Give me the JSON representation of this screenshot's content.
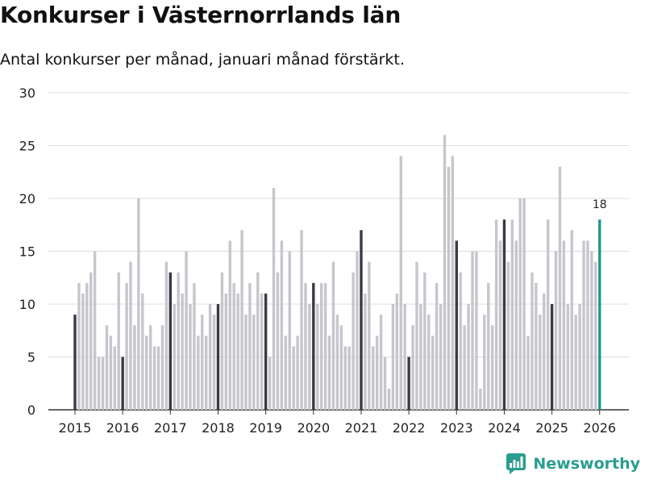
{
  "title": "Konkurser i Västernorrlands län",
  "subtitle": "Antal konkurser per månad, januari månad förstärkt.",
  "brand": {
    "name": "Newsworthy",
    "icon": "newsworthy-logo-icon",
    "color": "#2a9d8f"
  },
  "chart_data": {
    "type": "bar",
    "title": "Konkurser i Västernorrlands län",
    "subtitle": "Antal konkurser per månad, januari månad förstärkt.",
    "xlabel": "",
    "ylabel": "",
    "ylim": [
      0,
      30
    ],
    "yticks": [
      0,
      5,
      10,
      15,
      20,
      25,
      30
    ],
    "xticks": [
      "2015",
      "2016",
      "2017",
      "2018",
      "2019",
      "2020",
      "2021",
      "2022",
      "2023",
      "2024",
      "2025",
      "2026"
    ],
    "grid": true,
    "start": "2015-01",
    "highlight_month": "januari",
    "annotation": {
      "label": "18",
      "period": "2026-01"
    },
    "colors": {
      "regular": "#c6c6cc",
      "january": "#3a3a45",
      "latest": "#22998c"
    },
    "series": [
      {
        "name": "Antal konkurser",
        "values": [
          9,
          12,
          11,
          12,
          13,
          15,
          5,
          5,
          8,
          7,
          6,
          13,
          5,
          12,
          14,
          8,
          20,
          11,
          7,
          8,
          6,
          6,
          8,
          14,
          13,
          10,
          13,
          11,
          15,
          10,
          12,
          7,
          9,
          7,
          10,
          9,
          10,
          13,
          11,
          16,
          12,
          11,
          17,
          9,
          12,
          9,
          13,
          11,
          11,
          5,
          21,
          13,
          16,
          7,
          15,
          6,
          7,
          17,
          12,
          10,
          12,
          10,
          12,
          12,
          7,
          14,
          9,
          8,
          6,
          6,
          13,
          15,
          17,
          11,
          14,
          6,
          7,
          9,
          5,
          2,
          10,
          11,
          24,
          10,
          5,
          8,
          14,
          10,
          13,
          9,
          7,
          12,
          10,
          26,
          23,
          24,
          16,
          13,
          8,
          10,
          15,
          15,
          2,
          9,
          12,
          8,
          18,
          16,
          18,
          14,
          18,
          16,
          20,
          20,
          7,
          13,
          12,
          9,
          11,
          18,
          10,
          15,
          23,
          16,
          10,
          17,
          9,
          10,
          16,
          16,
          15,
          14,
          18
        ]
      }
    ]
  }
}
